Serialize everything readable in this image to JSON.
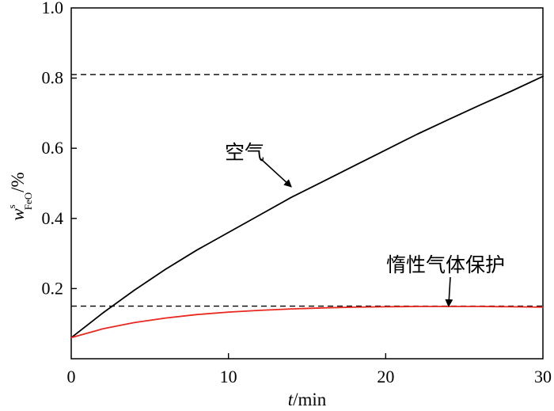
{
  "chart_data": {
    "type": "line",
    "xlabel_italic": "t",
    "xlabel_rest": "/min",
    "ylabel_w": "w",
    "ylabel_sup": "s",
    "ylabel_sub": "FeO",
    "ylabel_rest": "/%",
    "xlim": [
      0,
      30
    ],
    "ylim": [
      0,
      1.0
    ],
    "x_ticks": [
      0,
      10,
      20,
      30
    ],
    "x_tick_labels": [
      "0",
      "10",
      "20",
      "30"
    ],
    "y_ticks": [
      0.2,
      0.4,
      0.6,
      0.8,
      1.0
    ],
    "y_tick_labels": [
      "0.2",
      "0.4",
      "0.6",
      "0.8",
      "1.0"
    ],
    "grid": false,
    "series": [
      {
        "name": "空气",
        "color": "#000000",
        "style": "solid",
        "x": [
          0,
          2,
          4,
          6,
          8,
          10,
          12,
          14,
          16,
          18,
          20,
          22,
          24,
          26,
          28,
          30
        ],
        "y": [
          0.06,
          0.13,
          0.195,
          0.255,
          0.31,
          0.36,
          0.41,
          0.46,
          0.505,
          0.55,
          0.595,
          0.64,
          0.682,
          0.723,
          0.763,
          0.805
        ]
      },
      {
        "name": "惰性气体保护",
        "color": "#e8281e",
        "style": "solid",
        "x": [
          0,
          2,
          4,
          6,
          8,
          10,
          12,
          14,
          16,
          18,
          20,
          22,
          24,
          26,
          28,
          30
        ],
        "y": [
          0.06,
          0.085,
          0.103,
          0.116,
          0.126,
          0.133,
          0.138,
          0.142,
          0.145,
          0.147,
          0.148,
          0.149,
          0.149,
          0.149,
          0.148,
          0.147
        ]
      }
    ],
    "reference_lines": [
      {
        "y": 0.81,
        "style": "dashed",
        "color": "#000000"
      },
      {
        "y": 0.15,
        "style": "dashed",
        "color": "#000000"
      }
    ],
    "annotations": [
      {
        "text": "空气",
        "arrow_to": [
          14,
          0.49
        ]
      },
      {
        "text": "惰性气体保护",
        "arrow_to": [
          24,
          0.149
        ]
      }
    ]
  }
}
